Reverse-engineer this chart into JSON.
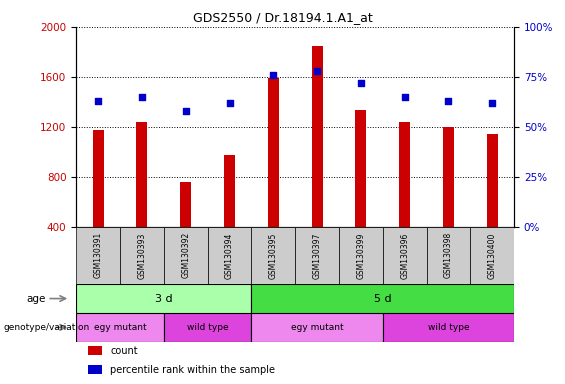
{
  "title": "GDS2550 / Dr.18194.1.A1_at",
  "samples": [
    "GSM130391",
    "GSM130393",
    "GSM130392",
    "GSM130394",
    "GSM130395",
    "GSM130397",
    "GSM130399",
    "GSM130396",
    "GSM130398",
    "GSM130400"
  ],
  "counts": [
    1170,
    1240,
    760,
    975,
    1590,
    1850,
    1330,
    1240,
    1200,
    1145
  ],
  "percentiles": [
    63,
    65,
    58,
    62,
    76,
    78,
    72,
    65,
    63,
    62
  ],
  "ylim_left": [
    400,
    2000
  ],
  "ylim_right": [
    0,
    100
  ],
  "yticks_left": [
    400,
    800,
    1200,
    1600,
    2000
  ],
  "yticks_right": [
    0,
    25,
    50,
    75,
    100
  ],
  "bar_color": "#cc0000",
  "scatter_color": "#0000cc",
  "age_3d_color": "#aaffaa",
  "age_5d_color": "#44dd44",
  "genotype_mutant_color": "#ee88ee",
  "genotype_wildtype_color": "#dd44dd",
  "sample_bg_color": "#cccccc",
  "age_borders": [
    {
      "xstart": -0.5,
      "xend": 3.5,
      "color": "#aaffaa",
      "label": "3 d"
    },
    {
      "xstart": 3.5,
      "xend": 9.5,
      "color": "#44dd44",
      "label": "5 d"
    }
  ],
  "genotype_row": [
    {
      "label": "egy mutant",
      "xstart": -0.5,
      "xend": 1.5,
      "color": "#ee88ee"
    },
    {
      "label": "wild type",
      "xstart": 1.5,
      "xend": 3.5,
      "color": "#dd44dd"
    },
    {
      "label": "egy mutant",
      "xstart": 3.5,
      "xend": 6.5,
      "color": "#ee88ee"
    },
    {
      "label": "wild type",
      "xstart": 6.5,
      "xend": 9.5,
      "color": "#dd44dd"
    }
  ]
}
